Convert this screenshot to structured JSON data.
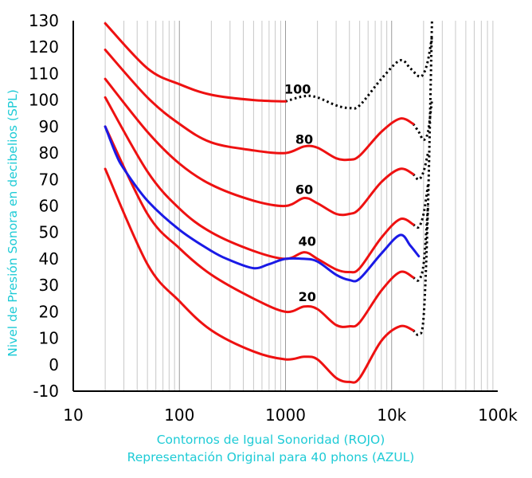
{
  "chart_data": {
    "type": "line",
    "title": "",
    "xlabel_lines": [
      "Contornos de Igual Sonoridad (ROJO)",
      "Representación Original para 40 phons (AZUL)"
    ],
    "ylabel": "Nivel de Presión Sonora en decibelios (SPL)",
    "xscale": "log",
    "xlim": [
      10,
      100000
    ],
    "ylim": [
      -10,
      130
    ],
    "xticks": [
      10,
      100,
      1000,
      10000,
      100000
    ],
    "xtick_labels": [
      "10",
      "100",
      "1000",
      "10k",
      "100k"
    ],
    "yticks": [
      -10,
      0,
      10,
      20,
      30,
      40,
      50,
      60,
      70,
      80,
      90,
      100,
      110,
      120,
      130
    ],
    "grid": true,
    "colors": {
      "red": "#ee1111",
      "blue": "#1a1ae6",
      "black": "#000000",
      "label": "#1ecbd6"
    },
    "series": [
      {
        "phon": "0",
        "color": "red",
        "label": "",
        "points": [
          [
            20,
            74
          ],
          [
            50,
            38
          ],
          [
            100,
            24
          ],
          [
            200,
            13
          ],
          [
            500,
            5
          ],
          [
            1000,
            2
          ],
          [
            1500,
            3
          ],
          [
            2000,
            2
          ],
          [
            3000,
            -5
          ],
          [
            4000,
            -6.5
          ],
          [
            5000,
            -5
          ],
          [
            8000,
            9
          ],
          [
            12000,
            14.5
          ],
          [
            16000,
            13
          ]
        ],
        "dotted": [
          [
            16000,
            13
          ],
          [
            18000,
            11.5
          ],
          [
            20000,
            18
          ],
          [
            22000,
            60
          ],
          [
            24000,
            130
          ]
        ]
      },
      {
        "phon": "20",
        "color": "red",
        "label": "20",
        "points": [
          [
            20,
            90
          ],
          [
            50,
            57
          ],
          [
            100,
            44
          ],
          [
            200,
            34
          ],
          [
            500,
            25
          ],
          [
            1000,
            20
          ],
          [
            1500,
            22
          ],
          [
            2000,
            21
          ],
          [
            3000,
            15
          ],
          [
            4000,
            14.5
          ],
          [
            5000,
            16
          ],
          [
            8000,
            28
          ],
          [
            12000,
            35
          ],
          [
            16000,
            33
          ]
        ],
        "dotted": [
          [
            16000,
            33
          ],
          [
            18000,
            32
          ],
          [
            20000,
            38
          ],
          [
            22000,
            60
          ]
        ]
      },
      {
        "phon": "40",
        "color": "red",
        "label": "40",
        "points": [
          [
            20,
            101
          ],
          [
            50,
            73
          ],
          [
            100,
            59
          ],
          [
            200,
            50
          ],
          [
            500,
            43
          ],
          [
            1000,
            40
          ],
          [
            1500,
            42.5
          ],
          [
            2000,
            40
          ],
          [
            3000,
            36
          ],
          [
            4000,
            35
          ],
          [
            5000,
            36.5
          ],
          [
            8000,
            48
          ],
          [
            12000,
            55
          ],
          [
            16000,
            53
          ]
        ],
        "dotted": [
          [
            16000,
            53
          ],
          [
            18000,
            52
          ],
          [
            20000,
            57
          ],
          [
            22000,
            68
          ]
        ]
      },
      {
        "phon": "60",
        "color": "red",
        "label": "60",
        "points": [
          [
            20,
            108
          ],
          [
            50,
            88
          ],
          [
            100,
            76
          ],
          [
            200,
            68
          ],
          [
            500,
            62
          ],
          [
            1000,
            60
          ],
          [
            1500,
            63
          ],
          [
            2000,
            61
          ],
          [
            3000,
            57
          ],
          [
            4000,
            57
          ],
          [
            5000,
            59
          ],
          [
            8000,
            69
          ],
          [
            12000,
            74
          ],
          [
            16000,
            72
          ]
        ],
        "dotted": [
          [
            16000,
            72
          ],
          [
            18000,
            70
          ],
          [
            20000,
            73
          ],
          [
            22000,
            80
          ]
        ]
      },
      {
        "phon": "80",
        "color": "red",
        "label": "80",
        "points": [
          [
            20,
            119
          ],
          [
            50,
            101
          ],
          [
            100,
            91
          ],
          [
            200,
            84
          ],
          [
            500,
            81
          ],
          [
            1000,
            80
          ],
          [
            1500,
            82.5
          ],
          [
            2000,
            82
          ],
          [
            3000,
            78
          ],
          [
            4000,
            77.5
          ],
          [
            5000,
            79
          ],
          [
            8000,
            88
          ],
          [
            12000,
            93
          ],
          [
            16000,
            91
          ]
        ],
        "dotted": [
          [
            16000,
            91
          ],
          [
            18000,
            88
          ],
          [
            20000,
            85
          ],
          [
            22000,
            88
          ],
          [
            24000,
            100
          ]
        ]
      },
      {
        "phon": "100",
        "color": "red",
        "label": "100",
        "points": [
          [
            20,
            129
          ],
          [
            50,
            112
          ],
          [
            100,
            106
          ],
          [
            200,
            102
          ],
          [
            500,
            100
          ],
          [
            1000,
            99.5
          ]
        ],
        "dotted": [
          [
            1000,
            99.5
          ],
          [
            1500,
            101.5
          ],
          [
            2000,
            101
          ],
          [
            3000,
            98
          ],
          [
            4000,
            97
          ],
          [
            5000,
            98
          ],
          [
            8000,
            108
          ],
          [
            12000,
            115
          ],
          [
            15000,
            112
          ],
          [
            18000,
            109
          ],
          [
            20000,
            110
          ],
          [
            22000,
            115
          ],
          [
            24000,
            124
          ]
        ]
      },
      {
        "phon": "40-original",
        "color": "blue",
        "label": "",
        "points": [
          [
            20,
            90
          ],
          [
            25,
            80
          ],
          [
            30,
            74
          ],
          [
            50,
            62
          ],
          [
            100,
            51
          ],
          [
            200,
            43
          ],
          [
            300,
            39.5
          ],
          [
            500,
            36.5
          ],
          [
            700,
            38
          ],
          [
            1000,
            40
          ],
          [
            1500,
            40
          ],
          [
            2000,
            39
          ],
          [
            3000,
            34
          ],
          [
            4000,
            32
          ],
          [
            5000,
            32.5
          ],
          [
            8000,
            42
          ],
          [
            12000,
            49
          ],
          [
            15000,
            45
          ],
          [
            18000,
            41
          ]
        ],
        "dotted": []
      }
    ]
  }
}
